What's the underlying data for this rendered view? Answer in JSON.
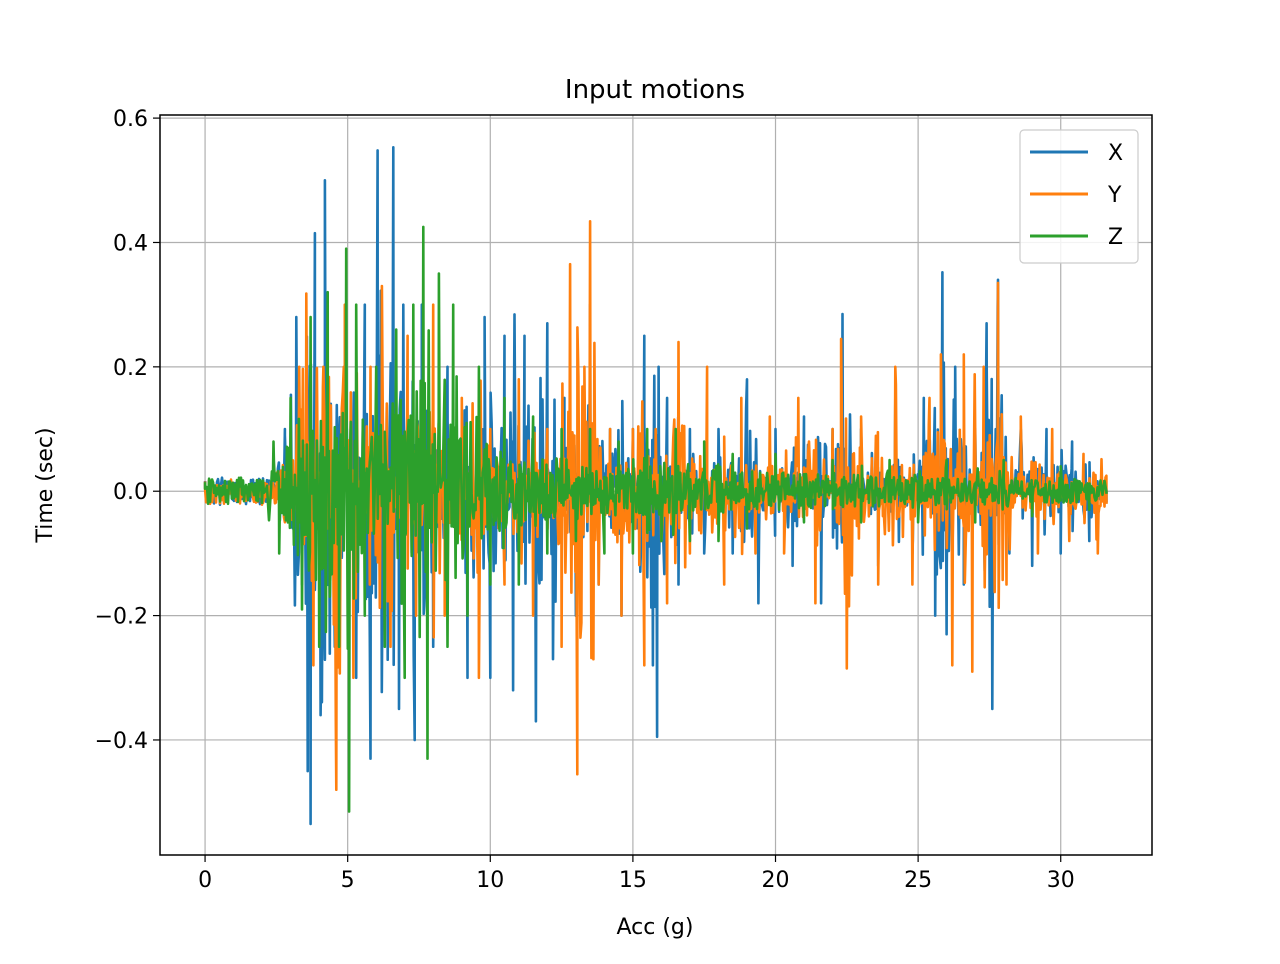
{
  "chart_data": {
    "type": "line",
    "title": "Input motions",
    "xlabel": "Acc (g)",
    "ylabel": "Time (sec)",
    "xlim": [
      -1.58,
      33.2
    ],
    "ylim": [
      -0.585,
      0.605
    ],
    "xticks": [
      0,
      5,
      10,
      15,
      20,
      25,
      30
    ],
    "xtick_labels": [
      "0",
      "5",
      "10",
      "15",
      "20",
      "25",
      "30"
    ],
    "yticks": [
      -0.4,
      -0.2,
      0.0,
      0.2,
      0.4,
      0.6
    ],
    "ytick_labels": [
      "−0.4",
      "−0.2",
      "0.0",
      "0.2",
      "0.4",
      "0.6"
    ],
    "grid": true,
    "legend_position": "top-right",
    "duration": 31.6,
    "series": [
      {
        "name": "X",
        "color": "#1f77b4",
        "peaks": [
          [
            0,
            0.005
          ],
          [
            1.0,
            0.012
          ],
          [
            2.0,
            -0.01
          ],
          [
            2.8,
            0.1
          ],
          [
            3.2,
            0.28
          ],
          [
            3.4,
            -0.15
          ],
          [
            3.6,
            -0.45
          ],
          [
            3.7,
            -0.535
          ],
          [
            3.85,
            0.415
          ],
          [
            4.05,
            -0.36
          ],
          [
            4.2,
            0.5
          ],
          [
            4.55,
            -0.25
          ],
          [
            4.9,
            0.2
          ],
          [
            5.3,
            -0.3
          ],
          [
            5.6,
            0.3
          ],
          [
            5.8,
            -0.43
          ],
          [
            6.05,
            0.548
          ],
          [
            6.2,
            -0.3
          ],
          [
            6.6,
            0.553
          ],
          [
            6.8,
            -0.35
          ],
          [
            6.95,
            0.3
          ],
          [
            7.35,
            -0.4
          ],
          [
            7.6,
            0.3
          ],
          [
            8.0,
            -0.25
          ],
          [
            8.5,
            0.2
          ],
          [
            9.2,
            -0.3
          ],
          [
            9.8,
            0.28
          ],
          [
            10.0,
            -0.3
          ],
          [
            10.5,
            0.25
          ],
          [
            10.8,
            -0.32
          ],
          [
            11.2,
            0.25
          ],
          [
            11.6,
            -0.37
          ],
          [
            12.0,
            0.27
          ],
          [
            12.2,
            -0.27
          ],
          [
            12.6,
            0.15
          ],
          [
            13.0,
            -0.2
          ],
          [
            13.5,
            0.3
          ],
          [
            13.8,
            -0.15
          ],
          [
            14.2,
            0.1
          ],
          [
            14.6,
            -0.2
          ],
          [
            15.0,
            0.1
          ],
          [
            15.4,
            0.25
          ],
          [
            15.7,
            -0.28
          ],
          [
            15.9,
            0.2
          ],
          [
            15.85,
            -0.395
          ],
          [
            16.2,
            0.15
          ],
          [
            16.6,
            -0.15
          ],
          [
            17.0,
            0.1
          ],
          [
            17.5,
            -0.1
          ],
          [
            18.0,
            0.1
          ],
          [
            18.5,
            -0.1
          ],
          [
            19.0,
            0.18
          ],
          [
            19.4,
            -0.18
          ],
          [
            20.0,
            0.1
          ],
          [
            20.6,
            -0.12
          ],
          [
            21.0,
            0.12
          ],
          [
            21.6,
            -0.18
          ],
          [
            22.0,
            0.1
          ],
          [
            22.35,
            0.285
          ],
          [
            22.5,
            -0.15
          ],
          [
            23.0,
            0.1
          ],
          [
            23.6,
            -0.12
          ],
          [
            24.2,
            0.15
          ],
          [
            24.8,
            -0.1
          ],
          [
            25.2,
            0.15
          ],
          [
            25.6,
            -0.2
          ],
          [
            25.85,
            0.352
          ],
          [
            26.0,
            -0.23
          ],
          [
            26.3,
            0.2
          ],
          [
            26.6,
            -0.15
          ],
          [
            27.0,
            0.1
          ],
          [
            27.4,
            0.27
          ],
          [
            27.6,
            -0.35
          ],
          [
            27.8,
            0.34
          ],
          [
            28.2,
            -0.1
          ],
          [
            28.6,
            0.1
          ],
          [
            29.0,
            -0.12
          ],
          [
            29.5,
            0.1
          ],
          [
            30.0,
            -0.1
          ],
          [
            30.4,
            0.08
          ],
          [
            31.0,
            -0.08
          ],
          [
            31.6,
            0.0
          ]
        ]
      },
      {
        "name": "Y",
        "color": "#ff7f0e",
        "peaks": [
          [
            0,
            0.003
          ],
          [
            1.0,
            -0.008
          ],
          [
            2.0,
            0.01
          ],
          [
            2.8,
            -0.05
          ],
          [
            3.3,
            0.2
          ],
          [
            3.55,
            0.318
          ],
          [
            3.8,
            -0.28
          ],
          [
            4.15,
            0.2
          ],
          [
            4.6,
            -0.48
          ],
          [
            4.9,
            0.3
          ],
          [
            5.2,
            -0.3
          ],
          [
            5.8,
            0.2
          ],
          [
            6.2,
            0.33
          ],
          [
            6.5,
            -0.25
          ],
          [
            7.1,
            0.25
          ],
          [
            7.4,
            -0.2
          ],
          [
            8.0,
            0.3
          ],
          [
            8.4,
            -0.2
          ],
          [
            9.0,
            0.15
          ],
          [
            9.6,
            -0.3
          ],
          [
            10.0,
            0.1
          ],
          [
            10.5,
            -0.15
          ],
          [
            11.0,
            0.18
          ],
          [
            11.5,
            -0.2
          ],
          [
            12.0,
            0.1
          ],
          [
            12.5,
            -0.25
          ],
          [
            12.8,
            0.365
          ],
          [
            13.05,
            -0.455
          ],
          [
            13.3,
            0.2
          ],
          [
            13.5,
            0.434
          ],
          [
            13.8,
            -0.15
          ],
          [
            14.2,
            0.1
          ],
          [
            14.6,
            -0.2
          ],
          [
            15.0,
            0.1
          ],
          [
            15.4,
            -0.28
          ],
          [
            15.8,
            0.1
          ],
          [
            16.2,
            -0.18
          ],
          [
            16.6,
            0.24
          ],
          [
            17.0,
            -0.1
          ],
          [
            17.6,
            0.2
          ],
          [
            18.2,
            -0.15
          ],
          [
            18.8,
            0.15
          ],
          [
            19.3,
            -0.1
          ],
          [
            19.8,
            0.12
          ],
          [
            20.3,
            -0.1
          ],
          [
            20.8,
            0.15
          ],
          [
            21.4,
            -0.18
          ],
          [
            22.0,
            0.1
          ],
          [
            22.3,
            0.245
          ],
          [
            22.5,
            -0.285
          ],
          [
            23.0,
            0.12
          ],
          [
            23.6,
            -0.15
          ],
          [
            24.2,
            0.2
          ],
          [
            24.8,
            -0.15
          ],
          [
            25.4,
            0.15
          ],
          [
            25.8,
            0.22
          ],
          [
            26.2,
            -0.28
          ],
          [
            26.6,
            0.22
          ],
          [
            26.9,
            -0.29
          ],
          [
            27.3,
            0.2
          ],
          [
            27.8,
            0.335
          ],
          [
            28.1,
            -0.15
          ],
          [
            28.6,
            0.12
          ],
          [
            29.2,
            -0.1
          ],
          [
            29.7,
            0.1
          ],
          [
            30.3,
            -0.08
          ],
          [
            30.8,
            0.06
          ],
          [
            31.3,
            -0.1
          ],
          [
            31.6,
            0.025
          ]
        ]
      },
      {
        "name": "Z",
        "color": "#2ca02c",
        "peaks": [
          [
            0,
            0.004
          ],
          [
            1.0,
            0.008
          ],
          [
            1.8,
            -0.015
          ],
          [
            2.4,
            0.08
          ],
          [
            2.6,
            -0.1
          ],
          [
            3.0,
            0.15
          ],
          [
            3.4,
            -0.19
          ],
          [
            3.7,
            0.28
          ],
          [
            4.0,
            -0.25
          ],
          [
            4.3,
            0.32
          ],
          [
            4.7,
            -0.25
          ],
          [
            4.95,
            0.39
          ],
          [
            5.05,
            -0.515
          ],
          [
            5.3,
            0.3
          ],
          [
            5.6,
            -0.2
          ],
          [
            6.0,
            0.2
          ],
          [
            6.3,
            -0.25
          ],
          [
            6.7,
            0.26
          ],
          [
            7.0,
            -0.3
          ],
          [
            7.3,
            0.3
          ],
          [
            7.65,
            0.425
          ],
          [
            7.8,
            -0.43
          ],
          [
            8.2,
            0.35
          ],
          [
            8.5,
            -0.25
          ],
          [
            8.7,
            0.3
          ],
          [
            9.2,
            -0.2
          ],
          [
            9.6,
            0.2
          ],
          [
            10.0,
            -0.15
          ],
          [
            10.5,
            0.15
          ],
          [
            11.0,
            -0.15
          ],
          [
            11.5,
            0.12
          ],
          [
            12.0,
            -0.1
          ],
          [
            12.5,
            0.1
          ],
          [
            13.0,
            -0.08
          ],
          [
            13.5,
            0.1
          ],
          [
            14.0,
            -0.1
          ],
          [
            14.5,
            0.08
          ],
          [
            15.0,
            -0.1
          ],
          [
            15.5,
            0.1
          ],
          [
            16.0,
            -0.08
          ],
          [
            16.5,
            0.1
          ],
          [
            17.0,
            -0.08
          ],
          [
            17.5,
            0.08
          ],
          [
            18.0,
            -0.08
          ],
          [
            18.5,
            0.06
          ],
          [
            19.0,
            -0.06
          ],
          [
            20.0,
            0.06
          ],
          [
            21.0,
            -0.05
          ],
          [
            22.0,
            0.05
          ],
          [
            23.0,
            -0.05
          ],
          [
            24.0,
            0.05
          ],
          [
            25.0,
            -0.05
          ],
          [
            26.0,
            0.05
          ],
          [
            27.0,
            -0.05
          ],
          [
            28.0,
            0.05
          ],
          [
            29.0,
            -0.04
          ],
          [
            30.0,
            0.04
          ],
          [
            31.0,
            -0.03
          ],
          [
            31.6,
            0.0
          ]
        ]
      }
    ]
  }
}
